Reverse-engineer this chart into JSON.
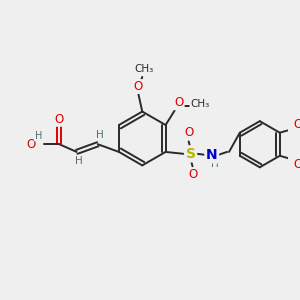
{
  "bg_color": "#efefef",
  "bond_color": "#2a2a2a",
  "atom_colors": {
    "O": "#e00000",
    "N": "#0000cc",
    "S": "#b8b800",
    "H": "#4a7070",
    "C": "#2a2a2a"
  },
  "figsize": [
    3.0,
    3.0
  ],
  "dpi": 100
}
